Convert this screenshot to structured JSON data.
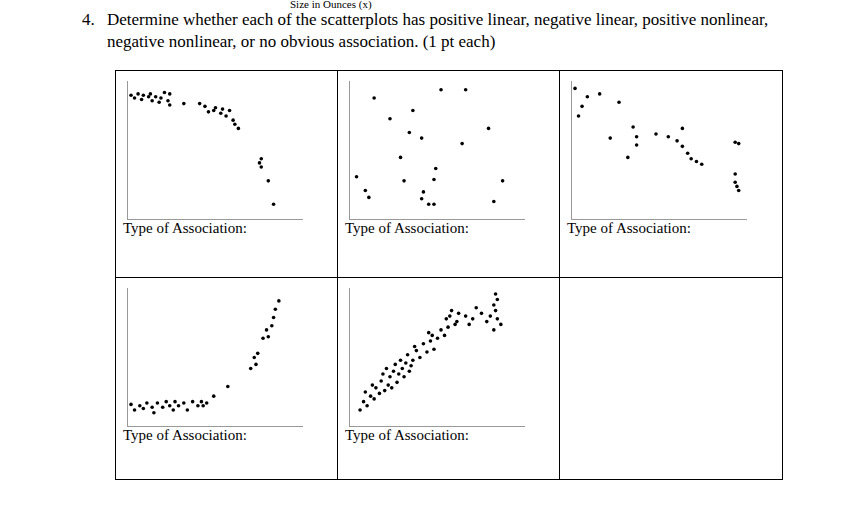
{
  "top_text": "Size in Ounces (x)",
  "question": {
    "number": "4.",
    "lines": [
      "Determine whether each of the scatterplots has positive linear, negative linear, positive nonlinear,",
      "negative nonlinear, or no obvious association. (1 pt each)"
    ]
  },
  "chart_data": [
    {
      "type": "scatter",
      "caption": "Type of Association:",
      "tick_labels": false,
      "xlim": [
        0,
        100
      ],
      "ylim": [
        0,
        100
      ],
      "x": [
        2,
        4,
        6,
        8,
        9,
        12,
        13,
        14,
        16,
        18,
        19,
        21,
        23,
        24,
        24,
        32,
        41,
        44,
        46,
        49,
        50,
        53,
        54,
        56,
        58,
        60,
        61,
        63,
        75,
        76,
        76,
        80,
        83
      ],
      "y": [
        90,
        88,
        91,
        87,
        90,
        89,
        91,
        86,
        89,
        85,
        88,
        92,
        86,
        91,
        83,
        84,
        84,
        82,
        78,
        79,
        81,
        77,
        80,
        75,
        79,
        72,
        69,
        66,
        41,
        38,
        44,
        28,
        11
      ]
    },
    {
      "type": "scatter",
      "caption": "Type of Association:",
      "tick_labels": false,
      "xlim": [
        0,
        100
      ],
      "ylim": [
        0,
        100
      ],
      "x": [
        14,
        23,
        36,
        52,
        66,
        79,
        34,
        41,
        64,
        29,
        49,
        48,
        4,
        9,
        11,
        31,
        42,
        41,
        45,
        48,
        82,
        87
      ],
      "y": [
        88,
        73,
        79,
        94,
        94,
        66,
        63,
        59,
        55,
        45,
        37,
        29,
        31,
        21,
        16,
        28,
        20,
        15,
        11,
        11,
        13,
        28
      ]
    },
    {
      "type": "scatter",
      "caption": "Type of Association:",
      "tick_labels": false,
      "xlim": [
        0,
        100
      ],
      "ylim": [
        0,
        100
      ],
      "x": [
        2,
        9,
        6,
        4,
        16,
        27,
        22,
        32,
        35,
        37,
        37,
        48,
        55,
        60,
        63,
        63,
        66,
        68,
        71,
        74,
        93,
        95,
        93,
        93,
        94,
        95
      ],
      "y": [
        95,
        89,
        82,
        75,
        91,
        85,
        59,
        45,
        67,
        60,
        54,
        62,
        60,
        57,
        66,
        53,
        48,
        44,
        42,
        40,
        56,
        55,
        33,
        27,
        24,
        21
      ]
    },
    {
      "type": "scatter",
      "caption": "Type of Association:",
      "tick_labels": false,
      "xlim": [
        0,
        100
      ],
      "ylim": [
        0,
        100
      ],
      "x": [
        2,
        4,
        7,
        9,
        11,
        14,
        15,
        17,
        20,
        22,
        24,
        26,
        27,
        29,
        32,
        34,
        37,
        40,
        42,
        43,
        45,
        49,
        57,
        70,
        72,
        73,
        74,
        77,
        79,
        80,
        82,
        83,
        84,
        86
      ],
      "y": [
        16,
        12,
        15,
        13,
        17,
        14,
        10,
        17,
        14,
        18,
        15,
        12,
        18,
        15,
        17,
        12,
        18,
        15,
        18,
        15,
        17,
        22,
        29,
        42,
        50,
        45,
        53,
        64,
        70,
        65,
        73,
        79,
        85,
        91
      ]
    },
    {
      "type": "scatter",
      "caption": "Type of Association:",
      "tick_labels": false,
      "xlim": [
        0,
        100
      ],
      "ylim": [
        0,
        100
      ],
      "x": [
        6,
        8,
        10,
        12,
        9,
        14,
        15,
        17,
        13,
        18,
        20,
        22,
        19,
        23,
        25,
        21,
        26,
        28,
        27,
        30,
        29,
        31,
        24,
        32,
        34,
        33,
        36,
        35,
        38,
        40,
        37,
        42,
        44,
        46,
        45,
        48,
        47,
        50,
        52,
        54,
        56,
        55,
        57,
        60,
        58,
        62,
        61,
        66,
        68,
        70,
        72,
        75,
        78,
        80,
        82,
        83,
        84,
        83,
        82,
        86,
        84
      ],
      "y": [
        12,
        18,
        15,
        22,
        25,
        20,
        28,
        24,
        30,
        33,
        26,
        30,
        38,
        36,
        40,
        42,
        45,
        38,
        32,
        42,
        48,
        36,
        28,
        46,
        40,
        52,
        48,
        44,
        55,
        50,
        58,
        60,
        54,
        62,
        68,
        56,
        66,
        64,
        70,
        66,
        72,
        78,
        80,
        74,
        84,
        82,
        76,
        80,
        74,
        78,
        86,
        82,
        76,
        80,
        88,
        84,
        92,
        96,
        70,
        74,
        78
      ]
    }
  ]
}
